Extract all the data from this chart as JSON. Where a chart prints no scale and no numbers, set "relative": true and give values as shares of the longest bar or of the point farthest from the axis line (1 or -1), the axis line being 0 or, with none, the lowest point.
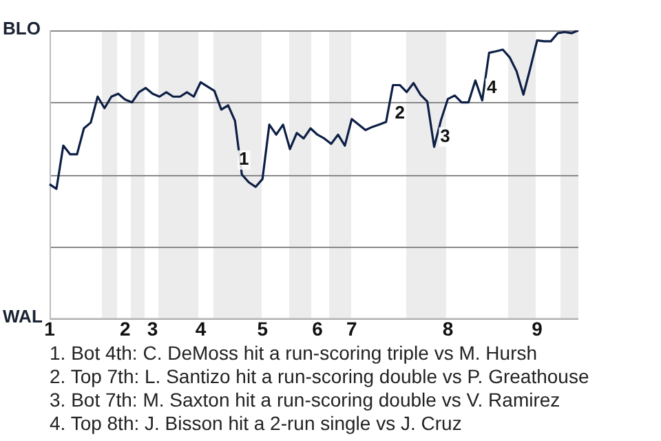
{
  "chart_data": {
    "type": "line",
    "categories": [
      "1",
      null,
      null,
      null,
      null,
      null,
      null,
      null,
      null,
      null,
      null,
      "2",
      null,
      null,
      null,
      "3",
      null,
      null,
      null,
      null,
      null,
      null,
      "4",
      null,
      null,
      null,
      null,
      null,
      null,
      null,
      null,
      "5",
      null,
      null,
      null,
      null,
      null,
      null,
      null,
      "6",
      null,
      null,
      null,
      null,
      "7",
      null,
      null,
      null,
      null,
      null,
      null,
      null,
      null,
      null,
      null,
      null,
      null,
      null,
      "8",
      null,
      null,
      null,
      null,
      null,
      null,
      null,
      null,
      null,
      null,
      null,
      null,
      "9",
      null,
      null,
      null,
      null,
      null,
      null
    ],
    "relative": true,
    "series": [
      {
        "color": "#0d1f45",
        "values": [
          0.466,
          0.45,
          0.6,
          0.57,
          0.57,
          0.66,
          0.68,
          0.77,
          0.73,
          0.77,
          0.78,
          0.76,
          0.75,
          0.785,
          0.8,
          0.78,
          0.77,
          0.785,
          0.77,
          0.77,
          0.785,
          0.77,
          0.82,
          0.805,
          0.79,
          0.725,
          0.74,
          0.686,
          0.5,
          0.473,
          0.457,
          0.484,
          0.673,
          0.638,
          0.673,
          0.588,
          0.644,
          0.625,
          0.66,
          0.638,
          0.625,
          0.606,
          0.638,
          0.6,
          0.692,
          0.673,
          0.654,
          0.665,
          0.673,
          0.682,
          0.81,
          0.81,
          0.786,
          0.817,
          0.777,
          0.753,
          0.596,
          0.689,
          0.762,
          0.774,
          0.75,
          0.75,
          0.826,
          0.757,
          0.922,
          0.927,
          0.933,
          0.906,
          0.858,
          0.777,
          0.869,
          0.965,
          0.962,
          0.962,
          0.99,
          0.994,
          0.99,
          1
        ]
      }
    ],
    "grid": "y",
    "legend": false,
    "marker": "none",
    "annotations": [
      "BLO",
      "WAL",
      "1",
      "2",
      "3",
      "4",
      "1. Bot 4th: C. DeMoss hit a run-scoring triple vs M. Hursh",
      "2. Top 7th: L. Santizo hit a run-scoring double vs P. Greathouse",
      "3. Bot 7th: M. Saxton hit a run-scoring double vs V. Ramirez",
      "4. Top 8th: J. Bisson hit a 2-run single vs J. Cruz"
    ]
  }
}
